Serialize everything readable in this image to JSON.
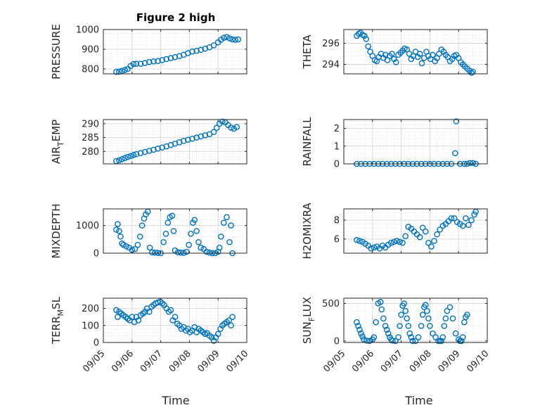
{
  "figure": {
    "title": "Figure 2 high",
    "xlabel": "Time",
    "x_tick_labels": [
      "09/05",
      "09/06",
      "09/07",
      "09/08",
      "09/09",
      "09/10"
    ],
    "marker_color": "#0072BD",
    "grid_color": "#d9d9d9"
  },
  "chart_data": [
    {
      "type": "scatter",
      "name": "PRESSURE",
      "ylabel": "PRESSURE",
      "ylim": [
        775,
        1000
      ],
      "yticks": [
        800,
        900,
        1000
      ],
      "xlim": [
        0,
        5
      ],
      "x": [
        0.45,
        0.55,
        0.65,
        0.75,
        0.85,
        0.95,
        1.05,
        1.15,
        1.3,
        1.45,
        1.6,
        1.75,
        1.9,
        2.05,
        2.2,
        2.35,
        2.5,
        2.65,
        2.8,
        2.95,
        3.1,
        3.25,
        3.4,
        3.55,
        3.7,
        3.85,
        4.0,
        4.1,
        4.2,
        4.3,
        4.4,
        4.5,
        4.6,
        4.7
      ],
      "values": [
        785,
        786,
        790,
        795,
        800,
        815,
        825,
        826,
        826,
        830,
        835,
        838,
        840,
        845,
        850,
        855,
        860,
        865,
        872,
        880,
        888,
        892,
        897,
        903,
        910,
        920,
        935,
        948,
        958,
        962,
        955,
        950,
        948,
        950
      ]
    },
    {
      "type": "scatter",
      "name": "THETA",
      "ylabel": "THETA",
      "ylim": [
        293.1,
        297.3
      ],
      "yticks": [
        294,
        296
      ],
      "xlim": [
        0,
        5
      ],
      "x": [
        0.45,
        0.52,
        0.58,
        0.65,
        0.72,
        0.78,
        0.85,
        0.92,
        1.0,
        1.08,
        1.15,
        1.22,
        1.3,
        1.38,
        1.45,
        1.52,
        1.6,
        1.68,
        1.75,
        1.82,
        1.9,
        1.98,
        2.05,
        2.12,
        2.2,
        2.28,
        2.35,
        2.42,
        2.5,
        2.58,
        2.65,
        2.72,
        2.8,
        2.88,
        2.95,
        3.02,
        3.1,
        3.18,
        3.25,
        3.32,
        3.4,
        3.48,
        3.55,
        3.62,
        3.7,
        3.78,
        3.85,
        3.92,
        4.0,
        4.08,
        4.15,
        4.22,
        4.3,
        4.38,
        4.45,
        4.5
      ],
      "values": [
        296.7,
        296.9,
        297.0,
        296.8,
        296.7,
        296.4,
        295.7,
        295.2,
        294.8,
        294.4,
        294.3,
        294.7,
        295.0,
        294.6,
        294.9,
        294.4,
        294.8,
        295.0,
        294.5,
        294.2,
        294.9,
        295.1,
        295.3,
        295.5,
        295.4,
        295.0,
        294.5,
        294.8,
        295.2,
        294.7,
        295.0,
        294.1,
        294.6,
        295.2,
        294.8,
        294.5,
        294.9,
        294.3,
        294.6,
        295.0,
        295.4,
        295.2,
        294.9,
        294.7,
        294.3,
        294.5,
        294.8,
        294.9,
        294.6,
        294.2,
        294.0,
        293.8,
        293.6,
        293.4,
        293.2,
        293.3
      ]
    },
    {
      "type": "scatter",
      "name": "AIR_TEMP",
      "ylabel": "AIR",
      "ylabel_sub": "T",
      "ylabel_after": "EMP",
      "ylim": [
        275.5,
        291.5
      ],
      "yticks": [
        280,
        285,
        290
      ],
      "xlim": [
        0,
        5
      ],
      "x": [
        0.45,
        0.55,
        0.65,
        0.75,
        0.85,
        0.95,
        1.05,
        1.15,
        1.3,
        1.45,
        1.6,
        1.75,
        1.9,
        2.05,
        2.2,
        2.35,
        2.5,
        2.65,
        2.8,
        2.95,
        3.1,
        3.25,
        3.4,
        3.55,
        3.7,
        3.85,
        3.95,
        4.05,
        4.15,
        4.25,
        4.35,
        4.45,
        4.55,
        4.65
      ],
      "values": [
        276.5,
        276.8,
        277.2,
        277.6,
        278.0,
        278.3,
        278.7,
        279.0,
        279.4,
        279.8,
        280.2,
        280.6,
        281.0,
        281.4,
        281.8,
        282.3,
        282.8,
        283.3,
        283.8,
        284.2,
        284.6,
        285.0,
        285.4,
        285.8,
        286.2,
        287.0,
        288.5,
        290.0,
        290.8,
        290.5,
        289.5,
        288.6,
        288.2,
        288.8
      ]
    },
    {
      "type": "scatter",
      "name": "RAINFALL",
      "ylabel": "RAINFALL",
      "ylim": [
        0,
        2.5
      ],
      "yticks": [
        0,
        1,
        2
      ],
      "xlim": [
        0,
        5
      ],
      "x": [
        0.45,
        0.6,
        0.75,
        0.9,
        1.05,
        1.2,
        1.35,
        1.5,
        1.65,
        1.8,
        1.95,
        2.1,
        2.25,
        2.4,
        2.55,
        2.7,
        2.85,
        3.0,
        3.15,
        3.3,
        3.45,
        3.6,
        3.75,
        3.88,
        3.92,
        4.05,
        4.2,
        4.3,
        4.4,
        4.5,
        4.6
      ],
      "values": [
        0,
        0,
        0,
        0,
        0,
        0,
        0,
        0,
        0,
        0,
        0,
        0,
        0,
        0,
        0,
        0,
        0,
        0,
        0,
        0,
        0,
        0,
        0,
        0.6,
        2.4,
        0,
        0,
        0,
        0.05,
        0.05,
        0
      ]
    },
    {
      "type": "scatter",
      "name": "MIXDEPTH",
      "ylabel": "MIXDEPTH",
      "ylim": [
        0,
        1600
      ],
      "yticks": [
        0,
        1000
      ],
      "xlim": [
        0,
        5
      ],
      "x": [
        0.45,
        0.5,
        0.55,
        0.6,
        0.65,
        0.7,
        0.8,
        0.9,
        1.0,
        1.1,
        1.2,
        1.28,
        1.35,
        1.42,
        1.48,
        1.55,
        1.62,
        1.7,
        1.8,
        1.9,
        2.0,
        2.1,
        2.18,
        2.25,
        2.32,
        2.4,
        2.45,
        2.5,
        2.6,
        2.7,
        2.8,
        2.9,
        2.98,
        3.05,
        3.12,
        3.18,
        3.25,
        3.32,
        3.4,
        3.5,
        3.6,
        3.7,
        3.8,
        3.9,
        4.0,
        4.05,
        4.1,
        4.2,
        4.3,
        4.4,
        4.45,
        4.5
      ],
      "values": [
        850,
        1050,
        800,
        600,
        350,
        300,
        250,
        200,
        120,
        150,
        300,
        600,
        1000,
        1250,
        1400,
        1500,
        200,
        30,
        20,
        10,
        0,
        400,
        700,
        1100,
        1300,
        1350,
        800,
        100,
        30,
        20,
        10,
        50,
        300,
        700,
        1100,
        1200,
        800,
        400,
        200,
        150,
        50,
        20,
        0,
        0,
        50,
        200,
        600,
        1100,
        1300,
        400,
        1000,
        0
      ]
    },
    {
      "type": "scatter",
      "name": "H2OMIXRA",
      "ylabel": "H2OMIXRA",
      "ylim": [
        4.5,
        9.2
      ],
      "yticks": [
        6,
        8
      ],
      "xlim": [
        0,
        5
      ],
      "x": [
        0.45,
        0.55,
        0.65,
        0.75,
        0.85,
        0.95,
        1.05,
        1.15,
        1.25,
        1.35,
        1.45,
        1.55,
        1.65,
        1.75,
        1.85,
        1.95,
        2.05,
        2.15,
        2.25,
        2.35,
        2.45,
        2.55,
        2.65,
        2.75,
        2.85,
        2.95,
        3.05,
        3.15,
        3.25,
        3.35,
        3.45,
        3.55,
        3.65,
        3.75,
        3.85,
        3.95,
        4.05,
        4.15,
        4.25,
        4.35,
        4.45,
        4.55,
        4.6
      ],
      "values": [
        5.9,
        5.8,
        5.7,
        5.5,
        5.3,
        5.0,
        5.1,
        5.2,
        5.0,
        5.3,
        5.1,
        5.4,
        5.6,
        5.7,
        5.8,
        5.7,
        5.6,
        6.3,
        7.3,
        7.1,
        6.8,
        6.5,
        6.2,
        7.2,
        6.8,
        5.6,
        5.2,
        5.8,
        6.5,
        7.0,
        7.4,
        7.6,
        7.9,
        8.2,
        8.2,
        7.8,
        7.6,
        7.4,
        8.2,
        7.5,
        8.0,
        8.6,
        8.9
      ]
    },
    {
      "type": "scatter",
      "name": "TERR_MSL",
      "ylabel": "TERR",
      "ylabel_sub": "M",
      "ylabel_after": "SL",
      "ylim": [
        0,
        260
      ],
      "yticks": [
        0,
        100,
        200
      ],
      "xlim": [
        0,
        5
      ],
      "x": [
        0.45,
        0.5,
        0.55,
        0.62,
        0.7,
        0.78,
        0.85,
        0.92,
        1.0,
        1.08,
        1.15,
        1.22,
        1.3,
        1.38,
        1.45,
        1.52,
        1.6,
        1.68,
        1.75,
        1.82,
        1.9,
        1.98,
        2.05,
        2.12,
        2.2,
        2.28,
        2.35,
        2.42,
        2.5,
        2.58,
        2.65,
        2.72,
        2.8,
        2.88,
        2.95,
        3.02,
        3.1,
        3.18,
        3.25,
        3.32,
        3.4,
        3.48,
        3.55,
        3.62,
        3.7,
        3.78,
        3.85,
        3.92,
        4.0,
        4.08,
        4.15,
        4.22,
        4.3,
        4.38,
        4.45,
        4.5
      ],
      "values": [
        190,
        150,
        180,
        170,
        160,
        150,
        140,
        130,
        150,
        120,
        150,
        130,
        160,
        170,
        180,
        200,
        180,
        210,
        220,
        230,
        235,
        240,
        230,
        220,
        200,
        180,
        190,
        130,
        150,
        110,
        100,
        80,
        90,
        70,
        80,
        60,
        70,
        90,
        60,
        80,
        70,
        60,
        50,
        55,
        40,
        30,
        10,
        30,
        50,
        80,
        100,
        110,
        120,
        130,
        100,
        150
      ]
    },
    {
      "type": "scatter",
      "name": "SUN_FLUX",
      "ylabel": "SUN",
      "ylabel_sub": "F",
      "ylabel_after": "LUX",
      "ylim": [
        -20,
        570
      ],
      "yticks": [
        0,
        500
      ],
      "xlim": [
        0,
        5
      ],
      "x": [
        0.45,
        0.5,
        0.55,
        0.6,
        0.65,
        0.7,
        0.8,
        0.9,
        1.0,
        1.05,
        1.12,
        1.2,
        1.28,
        1.32,
        1.38,
        1.45,
        1.5,
        1.55,
        1.6,
        1.65,
        1.7,
        1.8,
        1.9,
        1.95,
        2.0,
        2.05,
        2.1,
        2.15,
        2.2,
        2.25,
        2.3,
        2.35,
        2.4,
        2.5,
        2.6,
        2.7,
        2.75,
        2.8,
        2.85,
        2.9,
        2.95,
        3.0,
        3.1,
        3.2,
        3.3,
        3.35,
        3.4,
        3.45,
        3.5,
        3.55,
        3.6,
        3.7,
        3.8,
        3.9,
        4.0,
        4.05,
        4.1,
        4.15,
        4.2,
        4.25,
        4.3
      ],
      "values": [
        250,
        200,
        150,
        100,
        60,
        20,
        5,
        0,
        20,
        50,
        250,
        500,
        520,
        420,
        300,
        200,
        150,
        100,
        50,
        20,
        5,
        0,
        50,
        200,
        350,
        470,
        500,
        400,
        300,
        200,
        100,
        50,
        0,
        0,
        50,
        200,
        350,
        450,
        480,
        400,
        300,
        200,
        100,
        50,
        0,
        0,
        0,
        50,
        200,
        300,
        400,
        450,
        300,
        100,
        20,
        0,
        0,
        50,
        250,
        320,
        350
      ]
    }
  ]
}
